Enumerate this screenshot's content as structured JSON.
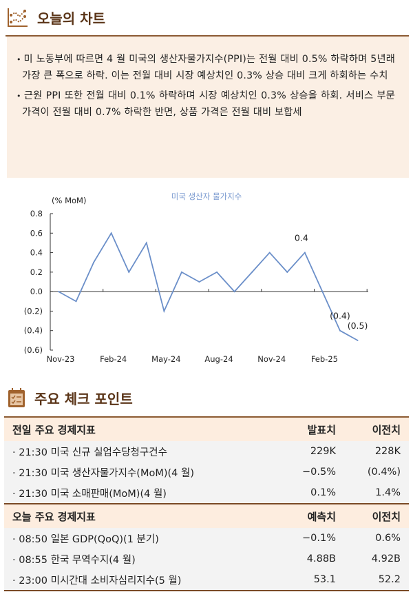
{
  "header": {
    "title": "오늘의 차트",
    "icon": "line-chart-icon"
  },
  "summary": {
    "bullets": [
      "미 노동부에 따르면 4 월 미국의 생산자물가지수(PPI)는 전월 대비 0.5% 하락하며 5년래 가장 큰 폭으로 하락. 이는 전월 대비 시장 예상치인 0.3% 상승 대비 크게 하회하는 수치",
      "근원 PPI 또한 전월 대비 0.1% 하락하며 시장 예상치인 0.3% 상승을 하회. 서비스 부문 가격이 전월 대비 0.7% 하락한 반면, 상품 가격은 전월 대비 보합세"
    ]
  },
  "chart_data": {
    "type": "line",
    "title": "미국 생산자 물가지수",
    "ylabel": "(% MoM)",
    "xlabel": "",
    "ylim": [
      -0.6,
      0.8
    ],
    "yticks": [
      "0.8",
      "0.6",
      "0.4",
      "0.2",
      "0.0",
      "(0.2)",
      "(0.4)",
      "(0.6)"
    ],
    "xtick_labels": [
      "Nov-23",
      "Feb-24",
      "May-24",
      "Aug-24",
      "Nov-24",
      "Feb-25"
    ],
    "x": [
      "Nov-23",
      "Dec-23",
      "Jan-24",
      "Feb-24",
      "Mar-24",
      "Apr-24",
      "May-24",
      "Jun-24",
      "Jul-24",
      "Aug-24",
      "Sep-24",
      "Oct-24",
      "Nov-24",
      "Dec-24",
      "Jan-25",
      "Feb-25",
      "Mar-25",
      "Apr-25"
    ],
    "series": [
      {
        "name": "미국 생산자 물가지수",
        "values": [
          0.0,
          -0.1,
          0.3,
          0.6,
          0.2,
          0.5,
          -0.2,
          0.2,
          0.1,
          0.2,
          0.0,
          0.2,
          0.4,
          0.2,
          0.4,
          0.0,
          -0.4,
          -0.5
        ],
        "color": "#6b8fc9"
      }
    ],
    "annotations": [
      {
        "index": 14,
        "text": "0.4"
      },
      {
        "index": 16,
        "text": "(0.4)"
      },
      {
        "index": 17,
        "text": "(0.5)"
      }
    ],
    "grid": false
  },
  "checkpoints": {
    "title": "주요 체크 포인트",
    "icon": "calendar-checklist-icon",
    "yesterday": {
      "heading": "전일 주요 경제지표",
      "col1": "발표치",
      "col2": "이전치",
      "rows": [
        {
          "label": "· 21:30 미국 신규 실업수당청구건수",
          "v1": "229K",
          "v2": "228K"
        },
        {
          "label": "· 21:30 미국 생산자물가지수(MoM)(4 월)",
          "v1": "−0.5%",
          "v2": "(0.4%)"
        },
        {
          "label": "· 21:30 미국 소매판매(MoM)(4 월)",
          "v1": "0.1%",
          "v2": "1.4%"
        }
      ]
    },
    "today": {
      "heading": "오늘 주요 경제지표",
      "col1": "예측치",
      "col2": "이전치",
      "rows": [
        {
          "label": "· 08:50 일본 GDP(QoQ)(1 분기)",
          "v1": "−0.1%",
          "v2": "0.6%"
        },
        {
          "label": "· 08:55 한국 무역수지(4 월)",
          "v1": "4.88B",
          "v2": "4.92B"
        },
        {
          "label": "· 23:00 미시간대 소비자심리지수(5 월)",
          "v1": "53.1",
          "v2": "52.2"
        }
      ]
    }
  }
}
